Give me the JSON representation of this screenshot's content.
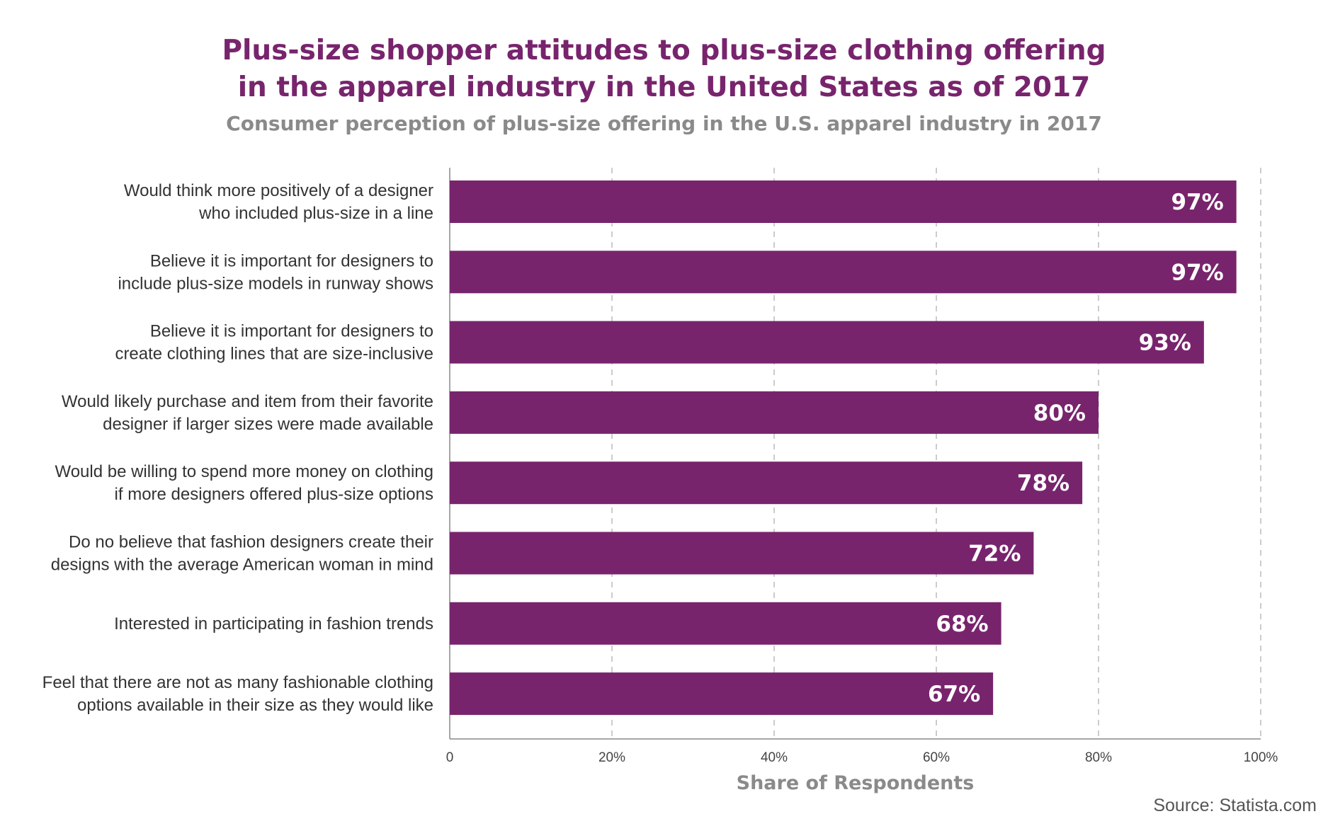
{
  "title_lines": [
    "Plus-size shopper attitudes to plus-size clothing offering",
    "in the apparel industry in the United States as of 2017"
  ],
  "subtitle": "Consumer perception of plus-size offering in the U.S. apparel industry in 2017",
  "source": "Source: Statista.com",
  "colors": {
    "bar": "#78246d",
    "title": "#78246d",
    "subtitle": "#8a8a8a",
    "grid": "#bbbbbb",
    "axis": "#888888"
  },
  "chart_data": {
    "type": "bar",
    "orientation": "horizontal",
    "categories": [
      [
        "Would think more positively of a designer",
        "who included plus-size in a line"
      ],
      [
        "Believe it is important for designers to",
        "include plus-size models in runway shows"
      ],
      [
        "Believe it is important for designers to",
        "create clothing lines that are size-inclusive"
      ],
      [
        "Would likely purchase and item from their favorite",
        "designer if larger sizes were made available"
      ],
      [
        "Would be willing to spend more money on clothing",
        "if more designers offered plus-size options"
      ],
      [
        "Do no believe that fashion designers create their",
        "designs with the average American woman in mind"
      ],
      [
        "Interested in participating in fashion trends"
      ],
      [
        "Feel that there are not as many fashionable clothing",
        "options available in their size as they would like"
      ]
    ],
    "values": [
      97,
      97,
      93,
      80,
      78,
      72,
      68,
      67
    ],
    "data_labels": [
      "97%",
      "97%",
      "93%",
      "80%",
      "78%",
      "72%",
      "68%",
      "67%"
    ],
    "xlim": [
      0,
      100
    ],
    "xticks": [
      0,
      20,
      40,
      60,
      80,
      100
    ],
    "xtick_labels": [
      "0",
      "20%",
      "40%",
      "60%",
      "80%",
      "100%"
    ],
    "xlabel": "Share of Respondents",
    "grid": "vertical dashed",
    "legend": "none"
  }
}
